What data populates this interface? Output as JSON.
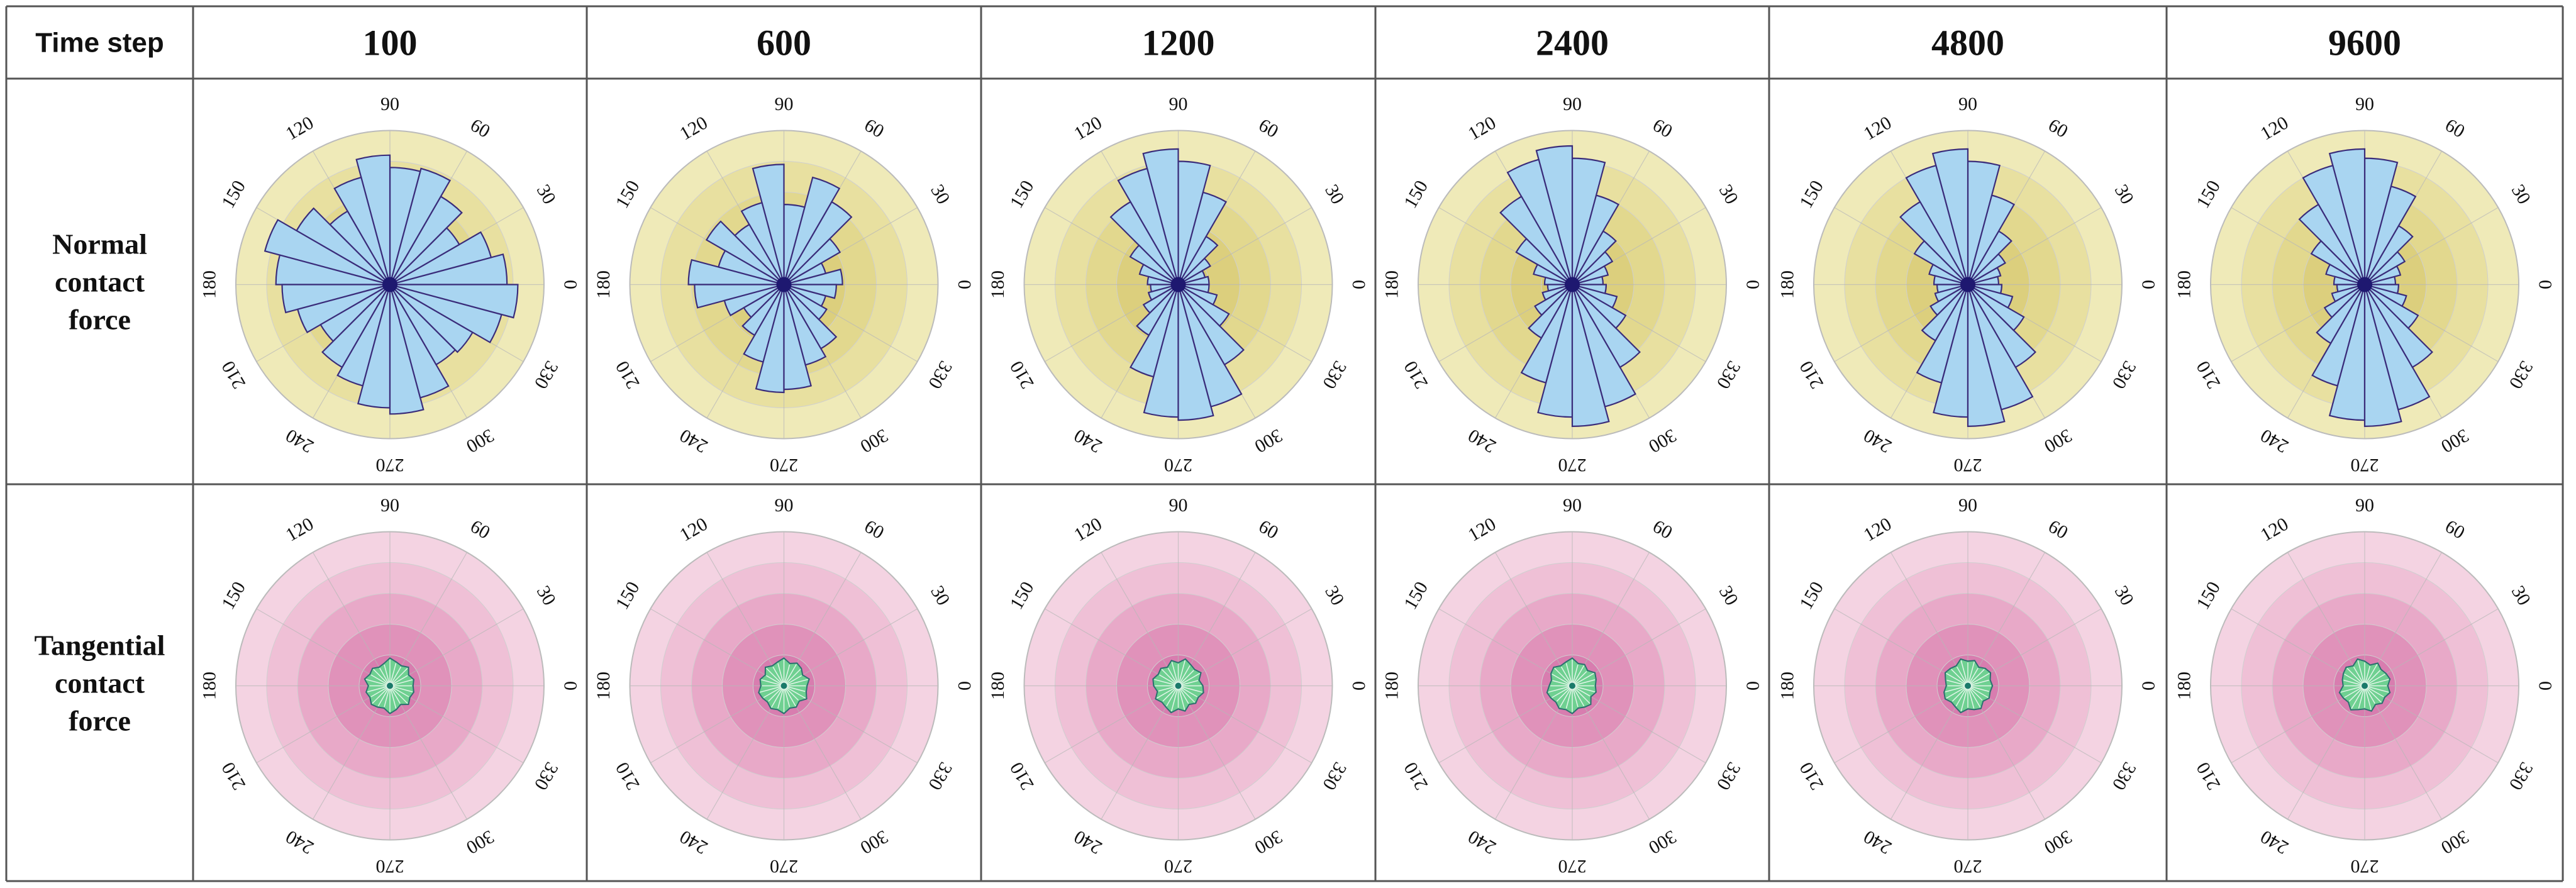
{
  "table": {
    "header_label": "Time step",
    "row_labels": [
      [
        "Normal",
        "contact",
        "force"
      ],
      [
        "Tangential",
        "contact",
        "force"
      ]
    ],
    "angle_labels": [
      "0",
      "30",
      "60",
      "90",
      "120",
      "150",
      "180",
      "210",
      "240",
      "270",
      "300",
      "330"
    ]
  },
  "colors": {
    "normal_background_rings": [
      "#efeab8",
      "#e8e0a0",
      "#e2d88e",
      "#dccf7d",
      "#d7c96f"
    ],
    "normal_bars": "#a9d5f1",
    "normal_edge": "#3a2c7a",
    "tangential_background_rings": [
      "#f4d3e2",
      "#efc0d6",
      "#e8a9c8",
      "#e092ba",
      "#d87daf"
    ],
    "tangential_fill": "#6fd091",
    "tangential_edge": "#2b6f6f",
    "center_dot": "#1e1870",
    "grid_line": "#b8b8b8"
  },
  "chart_data": [
    {
      "type": "polar-bar",
      "row": "Normal contact force",
      "column": "100",
      "bin_width_deg": 15,
      "values": [
        0.76,
        0.68,
        0.52,
        0.66,
        0.78,
        0.76,
        0.84,
        0.72,
        0.55,
        0.7,
        0.84,
        0.74,
        0.7,
        0.62,
        0.52,
        0.62,
        0.68,
        0.8,
        0.84,
        0.76,
        0.6,
        0.62,
        0.75,
        0.83
      ]
    },
    {
      "type": "polar-bar",
      "row": "Normal contact force",
      "column": "600",
      "bin_width_deg": 15,
      "values": [
        0.38,
        0.28,
        0.42,
        0.62,
        0.72,
        0.52,
        0.78,
        0.55,
        0.45,
        0.58,
        0.44,
        0.62,
        0.58,
        0.4,
        0.3,
        0.38,
        0.52,
        0.7,
        0.68,
        0.54,
        0.48,
        0.32,
        0.28,
        0.34
      ]
    },
    {
      "type": "polar-bar",
      "row": "Normal contact force",
      "column": "1200",
      "bin_width_deg": 15,
      "values": [
        0.2,
        0.18,
        0.24,
        0.36,
        0.62,
        0.8,
        0.88,
        0.78,
        0.62,
        0.36,
        0.26,
        0.2,
        0.18,
        0.2,
        0.26,
        0.38,
        0.62,
        0.86,
        0.88,
        0.82,
        0.6,
        0.38,
        0.26,
        0.2
      ]
    },
    {
      "type": "polar-bar",
      "row": "Normal contact force",
      "column": "2400",
      "bin_width_deg": 15,
      "values": [
        0.2,
        0.24,
        0.3,
        0.4,
        0.6,
        0.82,
        0.9,
        0.84,
        0.66,
        0.42,
        0.26,
        0.18,
        0.16,
        0.2,
        0.28,
        0.4,
        0.66,
        0.86,
        0.92,
        0.82,
        0.62,
        0.4,
        0.3,
        0.22
      ]
    },
    {
      "type": "polar-bar",
      "row": "Normal contact force",
      "column": "4800",
      "bin_width_deg": 15,
      "values": [
        0.2,
        0.22,
        0.28,
        0.4,
        0.6,
        0.8,
        0.88,
        0.8,
        0.62,
        0.4,
        0.26,
        0.22,
        0.2,
        0.22,
        0.28,
        0.42,
        0.66,
        0.86,
        0.92,
        0.84,
        0.62,
        0.42,
        0.3,
        0.22
      ]
    },
    {
      "type": "polar-bar",
      "row": "Normal contact force",
      "column": "9600",
      "bin_width_deg": 15,
      "values": [
        0.2,
        0.24,
        0.3,
        0.44,
        0.66,
        0.82,
        0.88,
        0.8,
        0.6,
        0.4,
        0.26,
        0.2,
        0.18,
        0.22,
        0.3,
        0.44,
        0.68,
        0.88,
        0.92,
        0.84,
        0.62,
        0.4,
        0.28,
        0.22
      ]
    },
    {
      "type": "polar-area",
      "row": "Tangential contact force",
      "column": "100",
      "values": [
        0.15,
        0.16,
        0.14,
        0.17,
        0.15,
        0.16,
        0.18,
        0.15,
        0.14,
        0.16,
        0.15,
        0.17,
        0.14,
        0.16,
        0.15,
        0.17,
        0.16,
        0.15,
        0.18,
        0.16,
        0.14,
        0.17,
        0.15,
        0.16
      ]
    },
    {
      "type": "polar-area",
      "row": "Tangential contact force",
      "column": "600",
      "values": [
        0.15,
        0.17,
        0.14,
        0.16,
        0.17,
        0.15,
        0.18,
        0.16,
        0.15,
        0.17,
        0.14,
        0.16,
        0.15,
        0.17,
        0.16,
        0.15,
        0.17,
        0.16,
        0.18,
        0.15,
        0.16,
        0.14,
        0.17,
        0.15
      ]
    },
    {
      "type": "polar-area",
      "row": "Tangential contact force",
      "column": "1200",
      "values": [
        0.16,
        0.14,
        0.17,
        0.15,
        0.16,
        0.18,
        0.15,
        0.17,
        0.14,
        0.16,
        0.15,
        0.17,
        0.16,
        0.14,
        0.17,
        0.15,
        0.16,
        0.18,
        0.15,
        0.17,
        0.14,
        0.16,
        0.15,
        0.17
      ]
    },
    {
      "type": "polar-area",
      "row": "Tangential contact force",
      "column": "2400",
      "values": [
        0.15,
        0.16,
        0.17,
        0.14,
        0.16,
        0.15,
        0.18,
        0.16,
        0.15,
        0.17,
        0.16,
        0.14,
        0.15,
        0.17,
        0.16,
        0.15,
        0.17,
        0.16,
        0.18,
        0.15,
        0.16,
        0.17,
        0.14,
        0.16
      ]
    },
    {
      "type": "polar-area",
      "row": "Tangential contact force",
      "column": "4800",
      "values": [
        0.16,
        0.15,
        0.17,
        0.16,
        0.14,
        0.17,
        0.16,
        0.18,
        0.15,
        0.16,
        0.17,
        0.15,
        0.14,
        0.16,
        0.17,
        0.15,
        0.16,
        0.18,
        0.15,
        0.16,
        0.17,
        0.14,
        0.16,
        0.15
      ]
    },
    {
      "type": "polar-area",
      "row": "Tangential contact force",
      "column": "9600",
      "values": [
        0.15,
        0.17,
        0.16,
        0.15,
        0.17,
        0.14,
        0.16,
        0.18,
        0.15,
        0.17,
        0.16,
        0.15,
        0.14,
        0.17,
        0.16,
        0.15,
        0.18,
        0.16,
        0.15,
        0.17,
        0.14,
        0.16,
        0.15,
        0.17
      ]
    }
  ],
  "column_labels": [
    "100",
    "600",
    "1200",
    "2400",
    "4800",
    "9600"
  ]
}
